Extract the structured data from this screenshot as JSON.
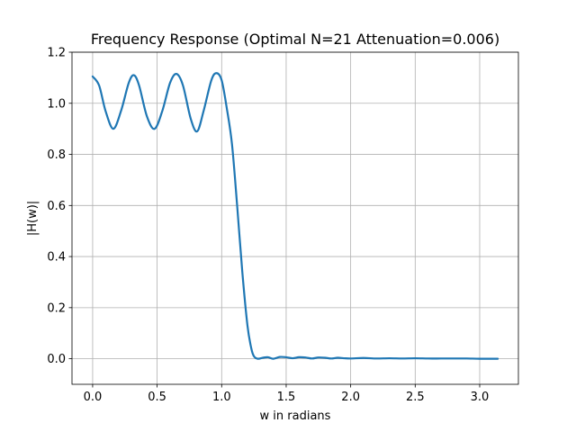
{
  "chart_data": {
    "type": "line",
    "title": "Frequency Response (Optimal N=21 Attenuation=0.006)",
    "xlabel": "w in radians",
    "ylabel": "|H(w)|",
    "xlim": [
      -0.16,
      3.3
    ],
    "ylim": [
      -0.1,
      1.2
    ],
    "xticks": [
      0.0,
      0.5,
      1.0,
      1.5,
      2.0,
      2.5,
      3.0
    ],
    "xtick_labels": [
      "0.0",
      "0.5",
      "1.0",
      "1.5",
      "2.0",
      "2.5",
      "3.0"
    ],
    "yticks": [
      0.0,
      0.2,
      0.4,
      0.6,
      0.8,
      1.0,
      1.2
    ],
    "ytick_labels": [
      "0.0",
      "0.2",
      "0.4",
      "0.6",
      "0.8",
      "1.0",
      "1.2"
    ],
    "grid": true,
    "series": [
      {
        "color": "#1f77b4",
        "x": [
          0.0,
          0.05,
          0.1,
          0.16,
          0.22,
          0.28,
          0.32,
          0.36,
          0.42,
          0.48,
          0.54,
          0.6,
          0.65,
          0.7,
          0.76,
          0.81,
          0.86,
          0.92,
          0.96,
          1.0,
          1.04,
          1.08,
          1.12,
          1.16,
          1.2,
          1.23,
          1.25,
          1.28,
          1.32,
          1.36,
          1.4,
          1.45,
          1.5,
          1.55,
          1.6,
          1.65,
          1.7,
          1.75,
          1.8,
          1.85,
          1.9,
          1.95,
          2.0,
          2.1,
          2.2,
          2.3,
          2.4,
          2.5,
          2.6,
          2.7,
          2.8,
          2.9,
          3.0,
          3.14
        ],
        "y": [
          1.105,
          1.07,
          0.97,
          0.9,
          0.97,
          1.08,
          1.11,
          1.07,
          0.95,
          0.9,
          0.97,
          1.08,
          1.115,
          1.07,
          0.94,
          0.89,
          0.97,
          1.09,
          1.118,
          1.09,
          0.98,
          0.84,
          0.6,
          0.34,
          0.13,
          0.04,
          0.01,
          0.0,
          0.004,
          0.006,
          0.0,
          0.007,
          0.006,
          0.002,
          0.006,
          0.005,
          0.001,
          0.005,
          0.004,
          0.001,
          0.004,
          0.002,
          0.001,
          0.003,
          0.001,
          0.002,
          0.001,
          0.002,
          0.001,
          0.001,
          0.001,
          0.001,
          0.0,
          0.0
        ]
      }
    ]
  }
}
